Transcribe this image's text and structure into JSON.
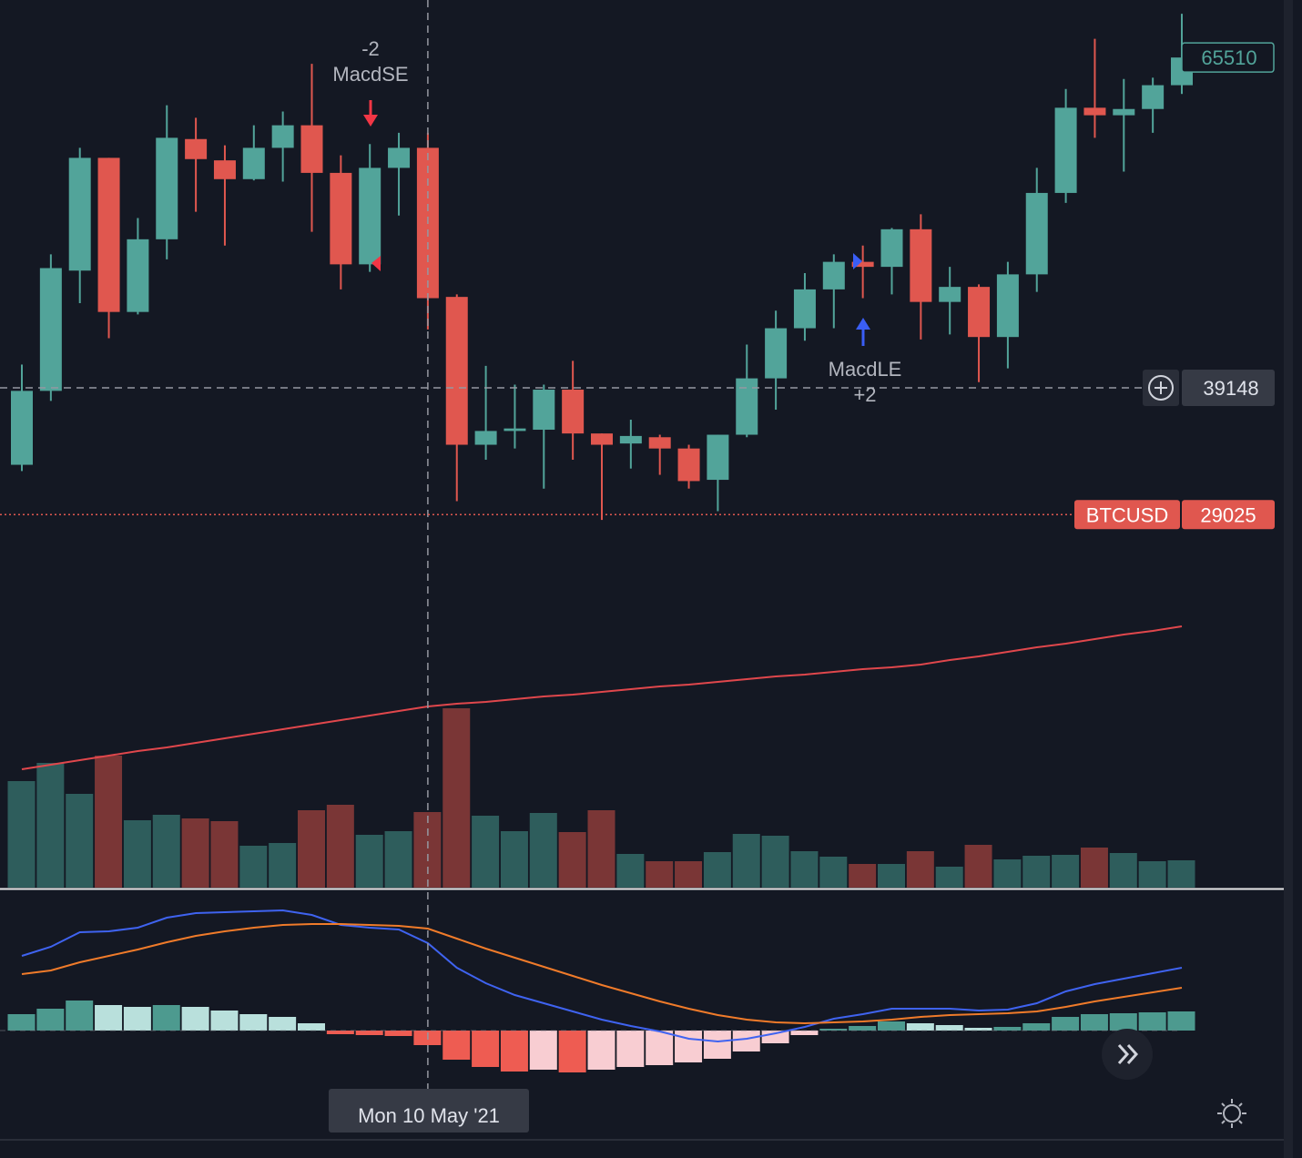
{
  "chart_data": {
    "type": "candlestick",
    "symbol": "BTCUSD",
    "ylim": [
      26500,
      70100
    ],
    "open": [
      33000,
      38900,
      48500,
      57500,
      45200,
      51000,
      59000,
      57300,
      55800,
      58300,
      60100,
      56300,
      49000,
      56700,
      58300,
      46400,
      34600,
      35700,
      35800,
      39000,
      35500,
      34700,
      35200,
      34300,
      31800,
      35400,
      39900,
      43900,
      47000,
      49200,
      48800,
      51800,
      46000,
      47200,
      43200,
      48200,
      54700,
      61500,
      60900,
      61400,
      63300
    ],
    "high": [
      41000,
      49800,
      58300,
      57500,
      52700,
      61700,
      60700,
      58500,
      60100,
      61200,
      65000,
      57700,
      58600,
      59500,
      59500,
      46600,
      40900,
      39400,
      39400,
      41300,
      35500,
      36600,
      35400,
      34600,
      35400,
      42600,
      45300,
      48300,
      49800,
      50500,
      51900,
      53000,
      48800,
      47400,
      49200,
      56700,
      63000,
      67000,
      63800,
      63900,
      69000
    ],
    "low": [
      32500,
      38100,
      45900,
      43100,
      45000,
      49400,
      53200,
      50500,
      55700,
      55600,
      51600,
      47000,
      48400,
      52900,
      43800,
      30100,
      33400,
      34300,
      31100,
      33400,
      28600,
      32700,
      32200,
      31100,
      29300,
      35200,
      37400,
      42900,
      43900,
      46300,
      46600,
      43000,
      43400,
      39600,
      40700,
      46800,
      53900,
      59100,
      56400,
      59500,
      62600
    ],
    "close": [
      38900,
      48700,
      57500,
      45200,
      51000,
      59100,
      57400,
      55800,
      58300,
      60100,
      56300,
      49000,
      56700,
      58300,
      46300,
      34600,
      35700,
      35900,
      39000,
      35500,
      34600,
      35300,
      34300,
      31700,
      35400,
      39900,
      43900,
      47000,
      49200,
      48800,
      51800,
      46000,
      47200,
      43200,
      48200,
      54700,
      61500,
      60900,
      61400,
      63300,
      65510
    ],
    "volume": [
      117,
      137,
      103,
      145,
      74,
      80,
      76,
      73,
      46,
      49,
      85,
      91,
      58,
      62,
      83,
      197,
      79,
      62,
      82,
      61,
      85,
      37,
      29,
      29,
      39,
      59,
      57,
      40,
      34,
      26,
      26,
      40,
      23,
      47,
      31,
      35,
      36,
      44,
      38,
      29,
      30
    ],
    "volume_ma": [
      130,
      135,
      140,
      145,
      150,
      154,
      159,
      164,
      169,
      174,
      179,
      184,
      189,
      194,
      199,
      202,
      204,
      207,
      210,
      212,
      215,
      218,
      221,
      223,
      226,
      229,
      232,
      234,
      237,
      240,
      242,
      245,
      250,
      254,
      259,
      264,
      268,
      273,
      278,
      282,
      287
    ],
    "macd": [
      82,
      92,
      108,
      109,
      113,
      124,
      129,
      130,
      131,
      132,
      127,
      116,
      113,
      111,
      96,
      69,
      52,
      39,
      30,
      21,
      12,
      5,
      -1,
      -9,
      -12,
      -9,
      -3,
      4,
      13,
      18,
      24,
      24,
      24,
      22,
      23,
      30,
      43,
      51,
      57,
      63,
      69
    ],
    "signal": [
      62,
      66,
      75,
      82,
      89,
      97,
      104,
      109,
      113,
      116,
      117,
      117,
      116,
      115,
      112,
      101,
      90,
      80,
      70,
      60,
      50,
      41,
      32,
      24,
      17,
      12,
      9,
      8,
      9,
      10,
      12,
      15,
      17,
      18,
      19,
      21,
      26,
      32,
      37,
      42,
      47
    ],
    "histogram": [
      18,
      24,
      33,
      28,
      26,
      28,
      26,
      22,
      18,
      15,
      8,
      -4,
      -5,
      -6,
      -16,
      -32,
      -40,
      -45,
      -43,
      -46,
      -43,
      -40,
      -38,
      -35,
      -31,
      -23,
      -14,
      -5,
      2,
      5,
      10,
      8,
      6,
      3,
      4,
      8,
      15,
      18,
      19,
      20,
      21
    ],
    "colors": {
      "up": "#52a49a",
      "down": "#e0574f",
      "volume_up": "#2e5d5c",
      "volume_down": "#7a3636",
      "volume_ma": "#e0474c",
      "macd": "#3f63f0",
      "signal": "#f07b2a",
      "hist_up_grow": "#4d9a8f",
      "hist_up_fall": "#b9e0dc",
      "hist_down_grow": "#ee5c52",
      "hist_down_fall": "#f8cdd2"
    },
    "last_price": 65510,
    "crosshair_price": 39148,
    "crosshair_date": "Mon 10 May '21",
    "line_price": 29025,
    "annotations": [
      {
        "count": "-2",
        "label": "MacdSE"
      },
      {
        "label": "MacdLE",
        "count": "+2"
      }
    ]
  }
}
